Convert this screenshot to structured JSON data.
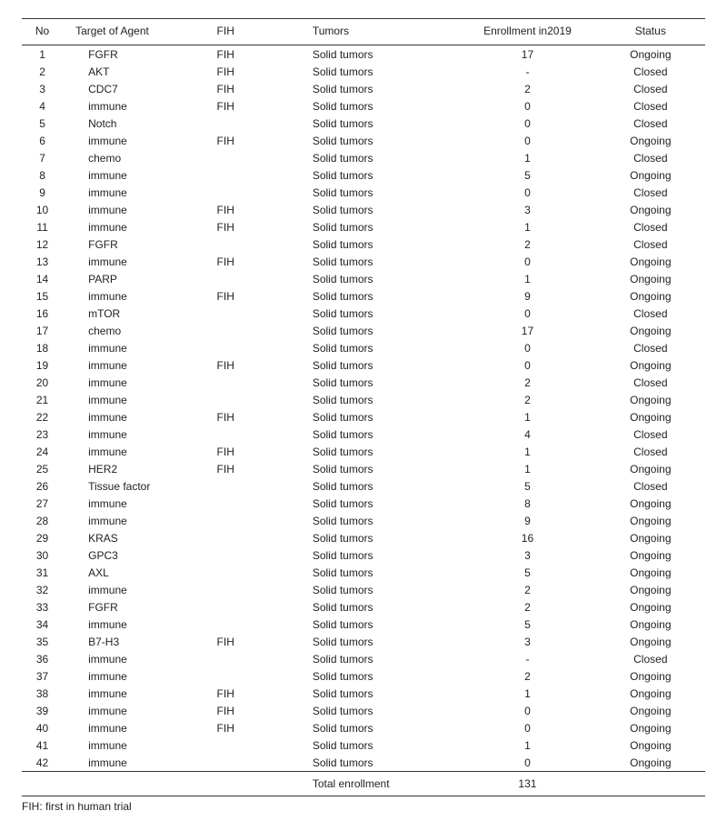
{
  "table": {
    "columns": [
      "No",
      "Target of Agent",
      "FIH",
      "Tumors",
      "Enrollment in2019",
      "Status"
    ],
    "rows": [
      [
        "1",
        "FGFR",
        "FIH",
        "Solid tumors",
        "17",
        "Ongoing"
      ],
      [
        "2",
        "AKT",
        "FIH",
        "Solid tumors",
        "-",
        "Closed"
      ],
      [
        "3",
        "CDC7",
        "FIH",
        "Solid tumors",
        "2",
        "Closed"
      ],
      [
        "4",
        "immune",
        "FIH",
        "Solid tumors",
        "0",
        "Closed"
      ],
      [
        "5",
        "Notch",
        "",
        "Solid tumors",
        "0",
        "Closed"
      ],
      [
        "6",
        "immune",
        "FIH",
        "Solid tumors",
        "0",
        "Ongoing"
      ],
      [
        "7",
        "chemo",
        "",
        "Solid tumors",
        "1",
        "Closed"
      ],
      [
        "8",
        "immune",
        "",
        "Solid tumors",
        "5",
        "Ongoing"
      ],
      [
        "9",
        "immune",
        "",
        "Solid tumors",
        "0",
        "Closed"
      ],
      [
        "10",
        "immune",
        "FIH",
        "Solid tumors",
        "3",
        "Ongoing"
      ],
      [
        "11",
        "immune",
        "FIH",
        "Solid tumors",
        "1",
        "Closed"
      ],
      [
        "12",
        "FGFR",
        "",
        "Solid tumors",
        "2",
        "Closed"
      ],
      [
        "13",
        "immune",
        "FIH",
        "Solid tumors",
        "0",
        "Ongoing"
      ],
      [
        "14",
        "PARP",
        "",
        "Solid tumors",
        "1",
        "Ongoing"
      ],
      [
        "15",
        "immune",
        "FIH",
        "Solid tumors",
        "9",
        "Ongoing"
      ],
      [
        "16",
        "mTOR",
        "",
        "Solid tumors",
        "0",
        "Closed"
      ],
      [
        "17",
        "chemo",
        "",
        "Solid tumors",
        "17",
        "Ongoing"
      ],
      [
        "18",
        "immune",
        "",
        "Solid tumors",
        "0",
        "Closed"
      ],
      [
        "19",
        "immune",
        "FIH",
        "Solid tumors",
        "0",
        "Ongoing"
      ],
      [
        "20",
        "immune",
        "",
        "Solid tumors",
        "2",
        "Closed"
      ],
      [
        "21",
        "immune",
        "",
        "Solid tumors",
        "2",
        "Ongoing"
      ],
      [
        "22",
        "immune",
        "FIH",
        "Solid tumors",
        "1",
        "Ongoing"
      ],
      [
        "23",
        "immune",
        "",
        "Solid tumors",
        "4",
        "Closed"
      ],
      [
        "24",
        "immune",
        "FIH",
        "Solid tumors",
        "1",
        "Closed"
      ],
      [
        "25",
        "HER2",
        "FIH",
        "Solid tumors",
        "1",
        "Ongoing"
      ],
      [
        "26",
        "Tissue factor",
        "",
        "Solid tumors",
        "5",
        "Closed"
      ],
      [
        "27",
        "immune",
        "",
        "Solid tumors",
        "8",
        "Ongoing"
      ],
      [
        "28",
        "immune",
        "",
        "Solid tumors",
        "9",
        "Ongoing"
      ],
      [
        "29",
        "KRAS",
        "",
        "Solid tumors",
        "16",
        "Ongoing"
      ],
      [
        "30",
        "GPC3",
        "",
        "Solid tumors",
        "3",
        "Ongoing"
      ],
      [
        "31",
        "AXL",
        "",
        "Solid tumors",
        "5",
        "Ongoing"
      ],
      [
        "32",
        "immune",
        "",
        "Solid tumors",
        "2",
        "Ongoing"
      ],
      [
        "33",
        "FGFR",
        "",
        "Solid tumors",
        "2",
        "Ongoing"
      ],
      [
        "34",
        "immune",
        "",
        "Solid tumors",
        "5",
        "Ongoing"
      ],
      [
        "35",
        "B7-H3",
        "FIH",
        "Solid tumors",
        "3",
        "Ongoing"
      ],
      [
        "36",
        "immune",
        "",
        "Solid tumors",
        "-",
        "Closed"
      ],
      [
        "37",
        "immune",
        "",
        "Solid tumors",
        "2",
        "Ongoing"
      ],
      [
        "38",
        "immune",
        "FIH",
        "Solid tumors",
        "1",
        "Ongoing"
      ],
      [
        "39",
        "immune",
        "FIH",
        "Solid tumors",
        "0",
        "Ongoing"
      ],
      [
        "40",
        "immune",
        "FIH",
        "Solid tumors",
        "0",
        "Ongoing"
      ],
      [
        "41",
        "immune",
        "",
        "Solid tumors",
        "1",
        "Ongoing"
      ],
      [
        "42",
        "immune",
        "",
        "Solid tumors",
        "0",
        "Ongoing"
      ]
    ],
    "total_label": "Total enrollment",
    "total_value": "131",
    "footnote": "FIH: first in human trial"
  }
}
